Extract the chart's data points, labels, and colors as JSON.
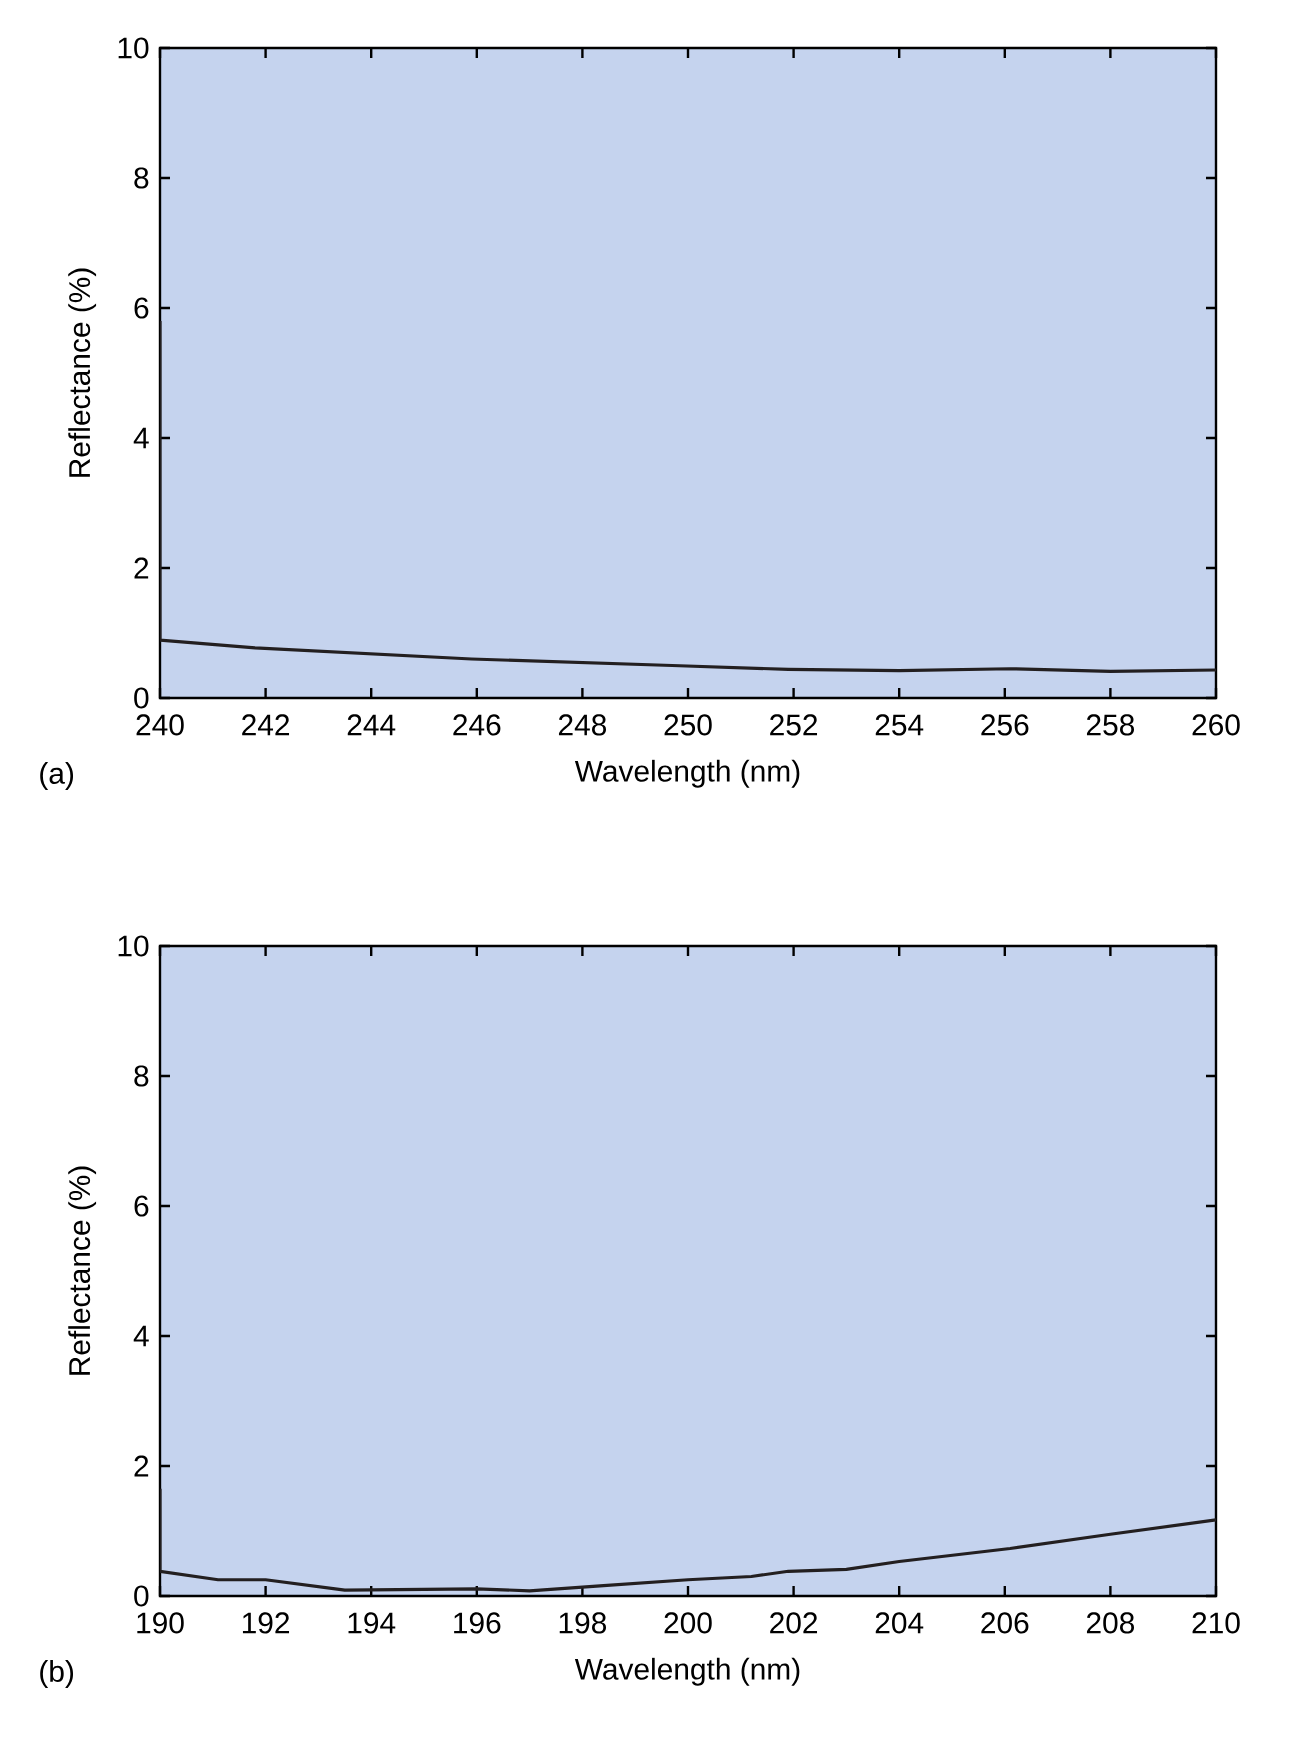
{
  "chart_data": [
    {
      "type": "line",
      "xlabel": "Wavelength (nm)",
      "ylabel": "Reflectance (%)",
      "annotations": [
        "(a)"
      ],
      "xlim": [
        240,
        260
      ],
      "ylim": [
        0,
        10
      ],
      "xticks": [
        240,
        242,
        244,
        246,
        248,
        250,
        252,
        254,
        256,
        258,
        260
      ],
      "yticks": [
        0,
        2,
        4,
        6,
        8,
        10
      ],
      "series": [
        {
          "color": "#231f20",
          "x": [
            240,
            240,
            241.8,
            245.9,
            249.7,
            251.9,
            254,
            256.1,
            258,
            260
          ],
          "values": [
            5.8,
            0.89,
            0.77,
            0.6,
            0.5,
            0.44,
            0.42,
            0.45,
            0.41,
            0.43
          ]
        }
      ]
    },
    {
      "type": "line",
      "xlabel": "Wavelength (nm)",
      "ylabel": "Reflectance (%)",
      "annotations": [
        "(b)"
      ],
      "xlim": [
        190,
        210
      ],
      "ylim": [
        0,
        10
      ],
      "xticks": [
        190,
        192,
        194,
        196,
        198,
        200,
        202,
        204,
        206,
        208,
        210
      ],
      "yticks": [
        0,
        2,
        4,
        6,
        8,
        10
      ],
      "series": [
        {
          "color": "#231f20",
          "x": [
            190,
            190,
            191.1,
            192,
            193.5,
            196,
            197,
            198.4,
            200,
            201.2,
            201.9,
            203,
            204,
            206.1,
            208,
            210
          ],
          "values": [
            1.65,
            0.38,
            0.25,
            0.25,
            0.09,
            0.11,
            0.08,
            0.16,
            0.25,
            0.3,
            0.38,
            0.41,
            0.53,
            0.73,
            0.95,
            1.17
          ]
        }
      ]
    }
  ]
}
